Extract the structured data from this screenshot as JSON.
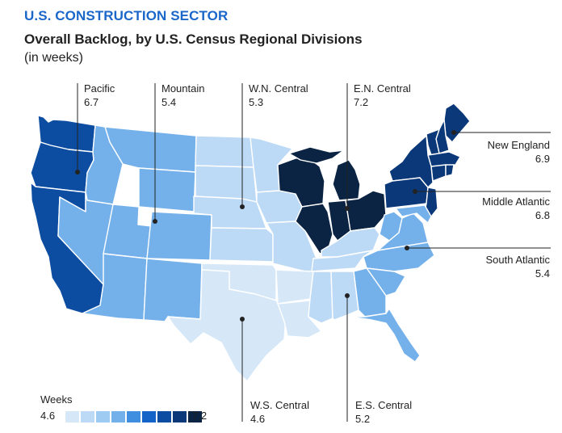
{
  "kicker": "U.S. CONSTRUCTION SECTOR",
  "title": "Overall Backlog, by U.S. Census Regional Divisions",
  "subtitle": "(in weeks)",
  "legend": {
    "title": "Weeks",
    "min": "4.6",
    "max": "7.2",
    "colors": [
      "#d6e8f8",
      "#bcdaf5",
      "#9ecbf1",
      "#74b1ea",
      "#3f8ee0",
      "#1463c8",
      "#0c4da1",
      "#0a3878",
      "#0b2444"
    ]
  },
  "divisions": {
    "pacific": {
      "name": "Pacific",
      "value": "6.7",
      "color": "#0c4da1"
    },
    "mountain": {
      "name": "Mountain",
      "value": "5.4",
      "color": "#74b1ea"
    },
    "wn_central": {
      "name": "W.N. Central",
      "value": "5.3",
      "color": "#bcdaf5"
    },
    "en_central": {
      "name": "E.N. Central",
      "value": "7.2",
      "color": "#0b2444"
    },
    "new_england": {
      "name": "New England",
      "value": "6.9",
      "color": "#0a3878"
    },
    "middle_atlantic": {
      "name": "Middle Atlantic",
      "value": "6.8",
      "color": "#0a3878"
    },
    "south_atlantic": {
      "name": "South Atlantic",
      "value": "5.4",
      "color": "#74b1ea"
    },
    "ws_central": {
      "name": "W.S. Central",
      "value": "4.6",
      "color": "#d6e8f8"
    },
    "es_central": {
      "name": "E.S. Central",
      "value": "5.2",
      "color": "#bcdaf5"
    }
  }
}
